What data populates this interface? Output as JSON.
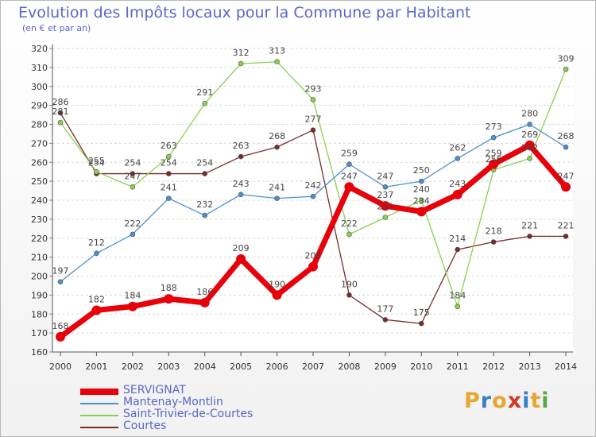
{
  "title": "Evolution des Impôts locaux pour la Commune par Habitant",
  "subtitle": "(en € et par an)",
  "logo": {
    "text": "Proxiti",
    "colors": [
      "#e8a530",
      "#3a7fc8",
      "#e8a530",
      "#d13a2a",
      "#3a7fc8",
      "#e8a530",
      "#5aa843"
    ]
  },
  "chart_data": {
    "type": "line",
    "x": [
      "2000",
      "2001",
      "2002",
      "2003",
      "2004",
      "2005",
      "2006",
      "2007",
      "2008",
      "2009",
      "2010",
      "2011",
      "2012",
      "2013",
      "2014"
    ],
    "ylim": [
      160,
      320
    ],
    "yticks": [
      160,
      170,
      180,
      190,
      200,
      210,
      220,
      230,
      240,
      250,
      260,
      270,
      280,
      290,
      300,
      310,
      320
    ],
    "grid": true,
    "legend_position": "bottom-left",
    "series": [
      {
        "name": "SERVIGNAT",
        "color": "#e8000b",
        "values": [
          168,
          182,
          184,
          188,
          186,
          209,
          190,
          205,
          247,
          237,
          234,
          243,
          259,
          269,
          247
        ]
      },
      {
        "name": "Mantenay-Montlin",
        "color": "#4a90d0",
        "values": [
          197,
          212,
          222,
          241,
          232,
          243,
          241,
          242,
          259,
          247,
          250,
          262,
          273,
          280,
          268
        ]
      },
      {
        "name": "Saint-Trivier-de-Courtes",
        "color": "#8ad050",
        "values": [
          281,
          255,
          247,
          263,
          291,
          312,
          313,
          293,
          222,
          231,
          240,
          184,
          256,
          262,
          309
        ]
      },
      {
        "name": "Courtes",
        "color": "#7a2a2a",
        "values": [
          286,
          254,
          254,
          254,
          254,
          263,
          268,
          277,
          190,
          177,
          175,
          214,
          218,
          221,
          221
        ]
      }
    ]
  }
}
